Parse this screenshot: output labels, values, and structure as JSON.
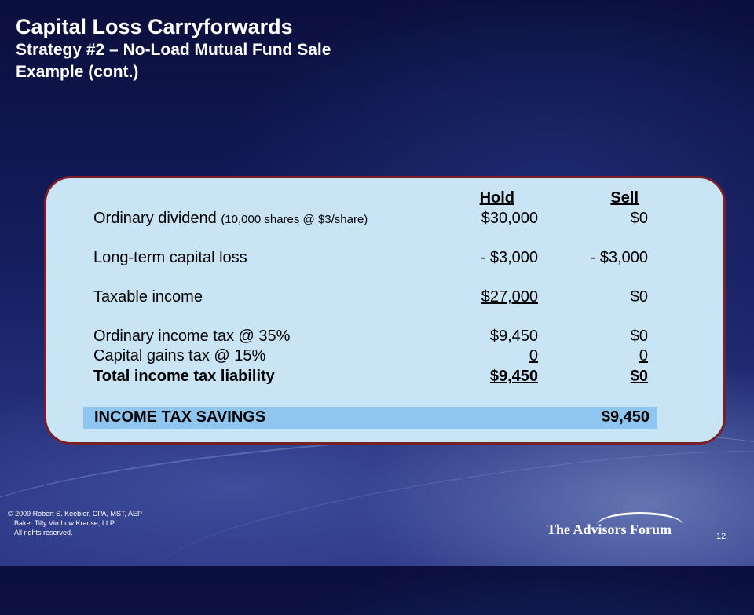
{
  "slide": {
    "title": "Capital Loss Carryforwards",
    "subtitle_line1": "Strategy #2 – No-Load Mutual Fund Sale",
    "subtitle_line2": "Example (cont.)"
  },
  "table": {
    "col_hold": "Hold",
    "col_sell": "Sell",
    "rows": [
      {
        "label": "Ordinary dividend",
        "note": "(10,000 shares @ $3/share)",
        "hold": "$30,000",
        "sell": "$0"
      },
      {
        "label": "Long-term capital loss",
        "hold": "- $3,000",
        "sell": "- $3,000"
      },
      {
        "label": "Taxable income",
        "hold": "$27,000",
        "sell": "$0"
      },
      {
        "label": "Ordinary income tax @ 35%",
        "hold": "$9,450",
        "sell": "$0"
      },
      {
        "label": "Capital gains tax @ 15%",
        "hold": "0",
        "sell": "0"
      },
      {
        "label": "Total income tax liability",
        "hold": "$9,450",
        "sell": "$0"
      }
    ],
    "savings_label": "INCOME TAX SAVINGS",
    "savings_value": "$9,450"
  },
  "footer": {
    "copyright_line1": "© 2009 Robert S. Keebler, CPA, MST, AEP",
    "copyright_line2": "Baker Tilly Virchow Krause, LLP",
    "copyright_line3": "All rights reserved.",
    "logo_text": "The Advisors Forum",
    "page_number": "12"
  },
  "colors": {
    "panel_bg": "#c9e4f5",
    "panel_border": "#7a1f2a",
    "savings_bg": "#8ec6f0"
  }
}
